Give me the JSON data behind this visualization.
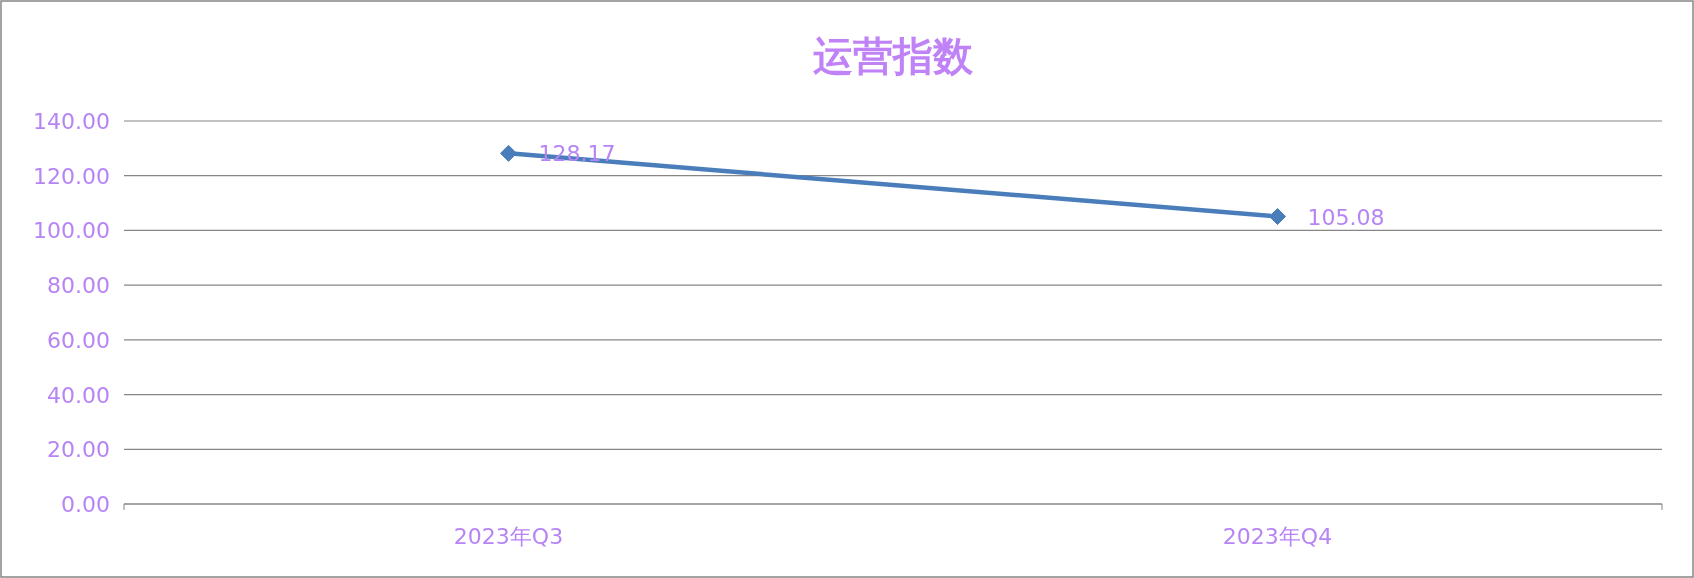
{
  "chart_data": {
    "type": "line",
    "title": "运营指数",
    "categories": [
      "2023年Q3",
      "2023年Q4"
    ],
    "series": [
      {
        "color": "#4a7ebb",
        "values": [
          128.17,
          105.08
        ]
      }
    ],
    "ylim": [
      0,
      140
    ],
    "yticks": [
      {
        "value": 0,
        "label": "0.00"
      },
      {
        "value": 20,
        "label": "20.00"
      },
      {
        "value": 40,
        "label": "40.00"
      },
      {
        "value": 60,
        "label": "60.00"
      },
      {
        "value": 80,
        "label": "80.00"
      },
      {
        "value": 100,
        "label": "100.00"
      },
      {
        "value": 120,
        "label": "120.00"
      },
      {
        "value": 140,
        "label": "140.00"
      }
    ],
    "grid": "y",
    "marker": "diamond",
    "line_style": "solid",
    "data_labels": true
  }
}
